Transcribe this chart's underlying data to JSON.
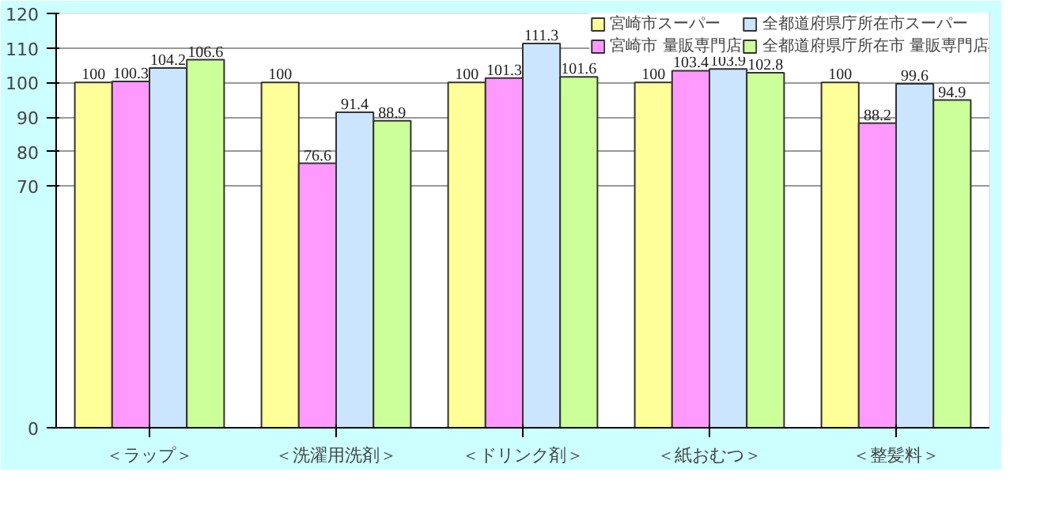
{
  "chart_data": {
    "type": "bar",
    "categories": [
      "＜ラップ＞",
      "＜洗濯用洗剤＞",
      "＜ドリンク剤＞",
      "＜紙おむつ＞",
      "＜整髪料＞"
    ],
    "series": [
      {
        "name": "宮崎市スーパー",
        "color": "#ffff99",
        "values": [
          100,
          100,
          100,
          100,
          100
        ]
      },
      {
        "name": "宮崎市 量販専門店",
        "color": "#ff99ff",
        "values": [
          100.3,
          76.6,
          101.3,
          103.4,
          88.2
        ]
      },
      {
        "name": "全都道府県庁所在市スーパー",
        "color": "#cce5ff",
        "values": [
          104.2,
          91.4,
          111.3,
          103.9,
          99.6
        ]
      },
      {
        "name": "全都道府県庁所在市 量販専門店",
        "color": "#ccff99",
        "values": [
          106.6,
          88.9,
          101.6,
          102.8,
          94.9
        ]
      }
    ],
    "ylim": [
      0,
      120
    ],
    "yticks": [
      0,
      70,
      80,
      90,
      100,
      110,
      120
    ],
    "grid": "y",
    "legend": "top right",
    "data_labels": true
  }
}
